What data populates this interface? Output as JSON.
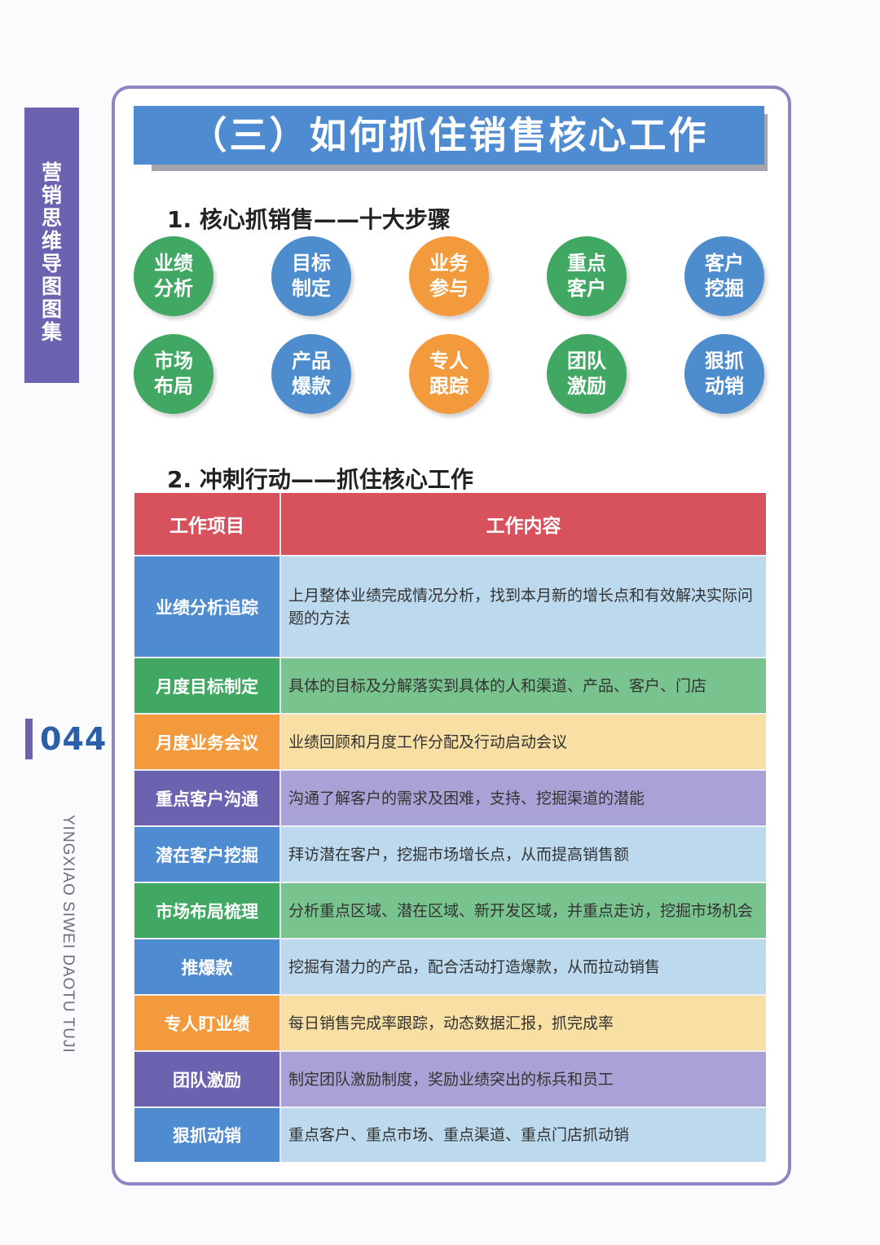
{
  "sidebar": {
    "label": "营销思维导图图集",
    "page_number": "044",
    "subtitle": "YINGXIAO SIWEI DAOTU TUJI"
  },
  "title": "（三）如何抓住销售核心工作",
  "section1": {
    "heading": "1. 核心抓销售——十大步骤",
    "steps": [
      "业绩分析",
      "目标制定",
      "业务参与",
      "重点客户",
      "客户挖掘",
      "市场布局",
      "产品爆款",
      "专人跟踪",
      "团队激励",
      "狠抓动销"
    ]
  },
  "section2": {
    "heading": "2. 冲刺行动——抓住核心工作",
    "headers": [
      "工作项目",
      "工作内容"
    ],
    "rows": [
      {
        "item": "业绩分析追踪",
        "content": "上月整体业绩完成情况分析，找到本月新的增长点和有效解决实际问题的方法"
      },
      {
        "item": "月度目标制定",
        "content": "具体的目标及分解落实到具体的人和渠道、产品、客户、门店"
      },
      {
        "item": "月度业务会议",
        "content": "业绩回顾和月度工作分配及行动启动会议"
      },
      {
        "item": "重点客户沟通",
        "content": "沟通了解客户的需求及困难，支持、挖掘渠道的潜能"
      },
      {
        "item": "潜在客户挖掘",
        "content": "拜访潜在客户，挖掘市场增长点，从而提高销售额"
      },
      {
        "item": "市场布局梳理",
        "content": "分析重点区域、潜在区域、新开发区域，并重点走访，挖掘市场机会"
      },
      {
        "item": "推爆款",
        "content": "挖掘有潜力的产品，配合活动打造爆款，从而拉动销售"
      },
      {
        "item": "专人盯业绩",
        "content": "每日销售完成率跟踪，动态数据汇报，抓完成率"
      },
      {
        "item": "团队激励",
        "content": "制定团队激励制度，奖励业绩突出的标兵和员工"
      },
      {
        "item": "狠抓动销",
        "content": "重点客户、重点市场、重点渠道、重点门店抓动销"
      }
    ]
  },
  "colors": {
    "purple": "#6b62b0",
    "blue": "#4e8bd1",
    "green": "#41a863",
    "orange": "#f39a3c",
    "red": "#d8525e"
  }
}
